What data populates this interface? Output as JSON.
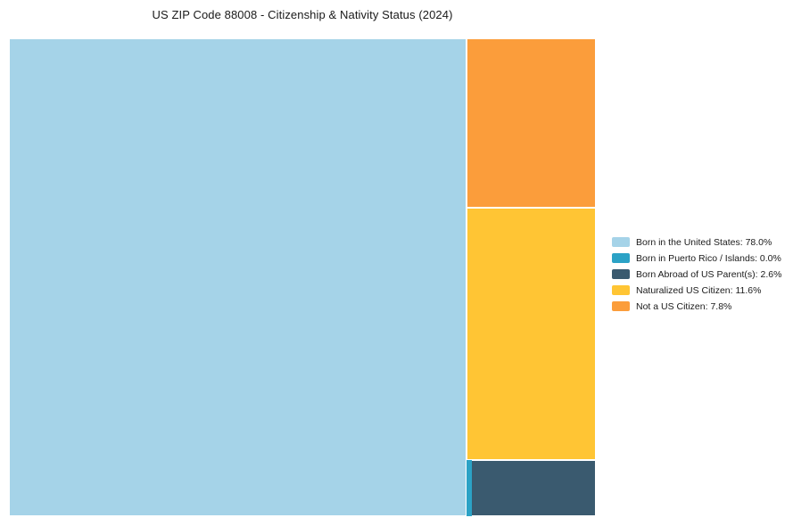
{
  "page": {
    "title": "US ZIP Code 88008 - Citizenship & Nativity Status (2024)"
  },
  "chart_data": {
    "type": "treemap",
    "title": "US ZIP Code 88008 - Citizenship & Nativity Status (2024)",
    "units": "%",
    "legend_position": "right",
    "items": [
      {
        "key": "born_us",
        "label": "Born in the United States",
        "value": 78.0,
        "display": "Born in the United States: 78.0%",
        "color": "#A5D3E8"
      },
      {
        "key": "puerto_rico",
        "label": "Born in Puerto Rico / Islands",
        "value": 0.0,
        "display": "Born in Puerto Rico / Islands: 0.0%",
        "color": "#2BA2C6"
      },
      {
        "key": "born_abroad",
        "label": "Born Abroad of US Parent(s)",
        "value": 2.6,
        "display": "Born Abroad of US Parent(s): 2.6%",
        "color": "#3A5A6F"
      },
      {
        "key": "naturalized",
        "label": "Naturalized US Citizen",
        "value": 11.6,
        "display": "Naturalized US Citizen: 11.6%",
        "color": "#FFC534"
      },
      {
        "key": "not_citizen",
        "label": "Not a US Citizen",
        "value": 7.8,
        "display": "Not a US Citizen: 7.8%",
        "color": "#FB9D3B"
      }
    ]
  }
}
